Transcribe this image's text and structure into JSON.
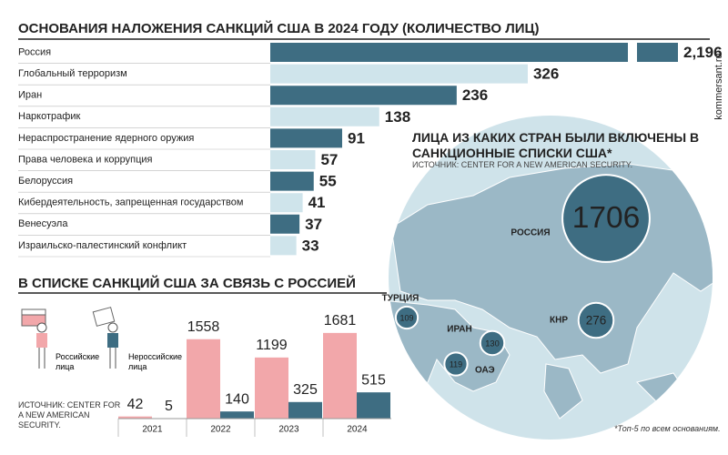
{
  "chart_data": [
    {
      "type": "hbar",
      "title": "ОСНОВАНИЯ НАЛОЖЕНИЯ САНКЦИЙ США В 2024 ГОДУ (КОЛИЧЕСТВО ЛИЦ)",
      "categories": [
        "Россия",
        "Глобальный терроризм",
        "Иран",
        "Наркотрафик",
        "Нераспространение ядерного оружия",
        "Права человека и коррупция",
        "Белоруссия",
        "Кибердеятельность, запрещенная государством",
        "Венесуэла",
        "Израильско-палестинский конфликт"
      ],
      "values": [
        2196,
        326,
        236,
        138,
        91,
        57,
        55,
        41,
        37,
        33
      ],
      "value_labels": [
        "2,196",
        "326",
        "236",
        "138",
        "91",
        "57",
        "55",
        "41",
        "37",
        "33"
      ],
      "colors": [
        "#3e6d82",
        "#cfe4eb"
      ]
    },
    {
      "type": "grouped-bar",
      "title": "В СПИСКЕ САНКЦИЙ США ЗА СВЯЗЬ С РОССИЕЙ",
      "categories": [
        "2021",
        "2022",
        "2023",
        "2024"
      ],
      "series": [
        {
          "name": "Российские лица",
          "color": "#f2a7aa",
          "values": [
            42,
            1558,
            1199,
            1681
          ]
        },
        {
          "name": "Нероссийские лица",
          "color": "#3e6d82",
          "values": [
            5,
            140,
            325,
            515
          ]
        }
      ],
      "source": "ИСТОЧНИК: CENTER FOR A NEW AMERICAN SECURITY."
    },
    {
      "type": "bubble-map",
      "title": "ЛИЦА ИЗ КАКИХ СТРАН БЫЛИ ВКЛЮЧЕНЫ В САНКЦИОННЫЕ СПИСКИ США*",
      "subtitle": "ИСТОЧНИК: CENTER FOR A NEW AMERICAN SECURITY.",
      "categories": [
        "РОССИЯ",
        "КНР",
        "ИРАН",
        "ТУРЦИЯ",
        "ОАЭ"
      ],
      "values": [
        1706,
        276,
        130,
        109,
        119
      ],
      "color": "#3e6d82"
    }
  ],
  "footnote": "*Топ-5 по всем основаниям.",
  "credit": "kommersant.ru"
}
